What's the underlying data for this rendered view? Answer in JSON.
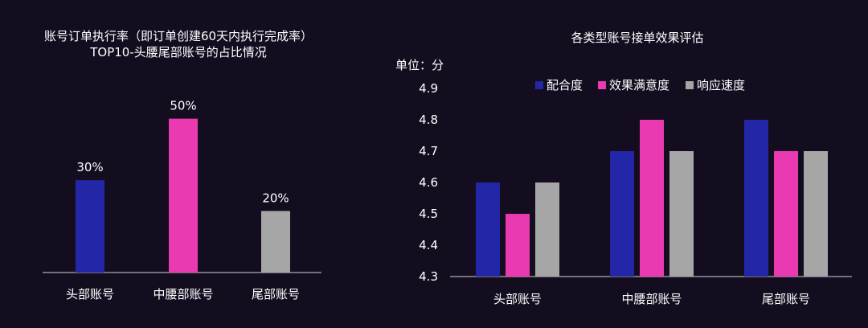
{
  "colors": {
    "background": "#140d20",
    "axis": "#cfcfd6"
  },
  "chart_data": [
    {
      "type": "bar",
      "title": "账号订单执行率（即订单创建60天内执行完成率）",
      "subtitle": "TOP10-头腰尾部账号的占比情况",
      "categories": [
        "头部账号",
        "中腰部账号",
        "尾部账号"
      ],
      "values": [
        30,
        50,
        20
      ],
      "value_labels": [
        "30%",
        "50%",
        "20%"
      ],
      "colors": [
        "#2326a6",
        "#e93ab1",
        "#a6a6a6"
      ],
      "ylim": [
        0,
        58
      ],
      "grid": false
    },
    {
      "type": "bar",
      "title": "各类型账号接单效果评估",
      "unit_label": "单位：分",
      "categories": [
        "头部账号",
        "中腰部账号",
        "尾部账号"
      ],
      "series": [
        {
          "name": "配合度",
          "color": "#2326a6",
          "values": [
            4.6,
            4.7,
            4.8
          ]
        },
        {
          "name": "效果满意度",
          "color": "#e93ab1",
          "values": [
            4.5,
            4.8,
            4.7
          ]
        },
        {
          "name": "响应速度",
          "color": "#a6a6a6",
          "values": [
            4.6,
            4.7,
            4.7
          ]
        }
      ],
      "y_ticks": [
        "4.3",
        "4.4",
        "4.5",
        "4.6",
        "4.7",
        "4.8",
        "4.9"
      ],
      "ylim": [
        4.3,
        4.9
      ],
      "legend_position": "top",
      "grid": false
    }
  ]
}
